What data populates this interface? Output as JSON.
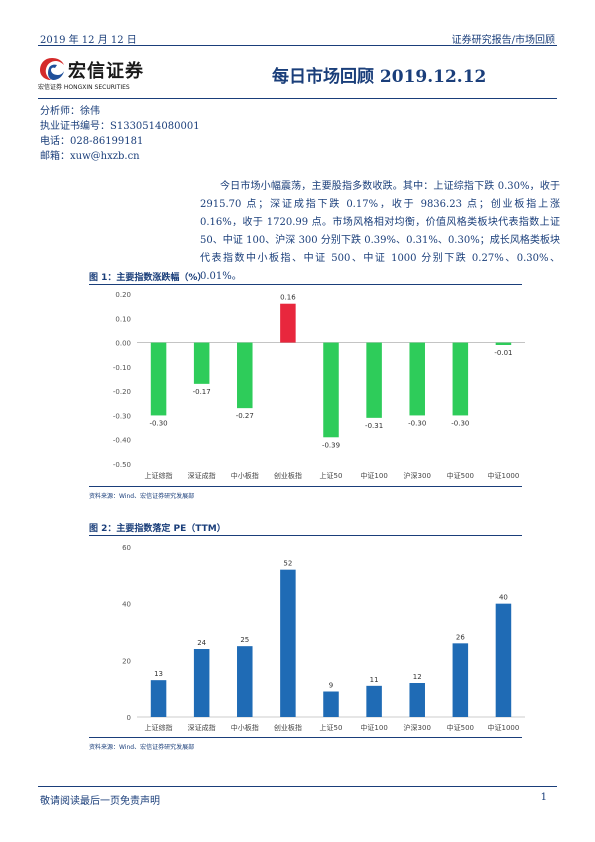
{
  "header": {
    "date": "2019 年 12 月 12 日",
    "report_type": "证券研究报告/市场回顾"
  },
  "logo": {
    "name_cn": "宏信证券",
    "name_sub": "宏信证券 HONGXIN SECURITIES"
  },
  "title": "每日市场回顾 2019.12.12",
  "analyst": {
    "name": "分析师：徐伟",
    "license": "执业证书编号：S1330514080001",
    "phone": "电话：028-86199181",
    "email": "邮箱：xuw@hxzb.cn"
  },
  "summary": "今日市场小幅震荡，主要股指多数收跌。其中：上证综指下跌 0.30%，收于 2915.70 点；深证成指下跌 0.17%，收于 9836.23 点；创业板指上涨 0.16%，收于 1720.99 点。市场风格相对均衡，价值风格类板块代表指数上证 50、中证 100、沪深 300 分别下跌 0.39%、0.31%、0.30%；成长风格类板块代表指数中小板指、中证 500、中证 1000 分别下跌 0.27%、0.30%、0.01%。",
  "figures": [
    {
      "title": "图 1：主要指数涨跌幅（%）",
      "source": "资料来源：Wind、宏信证券研究发展部"
    },
    {
      "title": "图 2：主要指数落定 PE（TTM）",
      "source": "资料来源：Wind、宏信证券研究发展部"
    }
  ],
  "chart_data": [
    {
      "type": "bar",
      "title": "图 1：主要指数涨跌幅（%）",
      "categories": [
        "上证综指",
        "深证成指",
        "中小板指",
        "创业板指",
        "上证50",
        "中证100",
        "沪深300",
        "中证500",
        "中证1000"
      ],
      "values": [
        -0.3,
        -0.17,
        -0.27,
        0.16,
        -0.39,
        -0.31,
        -0.3,
        -0.3,
        -0.01
      ],
      "data_labels": [
        "-0.30",
        "-0.17",
        "-0.27",
        "0.16",
        "-0.39",
        "-0.31",
        "-0.30",
        "-0.30",
        "-0.01"
      ],
      "ylim": [
        -0.5,
        0.2
      ],
      "yticks": [
        "0.20",
        "0.10",
        "0.00",
        "-0.10",
        "-0.20",
        "-0.30",
        "-0.40",
        "-0.50"
      ],
      "ytick_values": [
        0.2,
        0.1,
        0.0,
        -0.1,
        -0.2,
        -0.3,
        -0.4,
        -0.5
      ],
      "colors": {
        "positive": "#e8273d",
        "negative": "#2ecc5a"
      },
      "grid": false,
      "legend": "none"
    },
    {
      "type": "bar",
      "title": "图 2：主要指数落定 PE（TTM）",
      "categories": [
        "上证综指",
        "深证成指",
        "中小板指",
        "创业板指",
        "上证50",
        "中证100",
        "沪深300",
        "中证500",
        "中证1000"
      ],
      "values": [
        13,
        24,
        25,
        52,
        9,
        11,
        12,
        26,
        40
      ],
      "data_labels": [
        "13",
        "24",
        "25",
        "52",
        "9",
        "11",
        "12",
        "26",
        "40"
      ],
      "ylim": [
        0,
        60
      ],
      "yticks": [
        "60",
        "40",
        "20",
        "0"
      ],
      "ytick_values": [
        60,
        40,
        20,
        0
      ],
      "colors": {
        "bar": "#1f6bb5"
      },
      "grid": false,
      "legend": "none"
    }
  ],
  "footer": {
    "disclaimer": "敬请阅读最后一页免责声明",
    "page": "1"
  }
}
